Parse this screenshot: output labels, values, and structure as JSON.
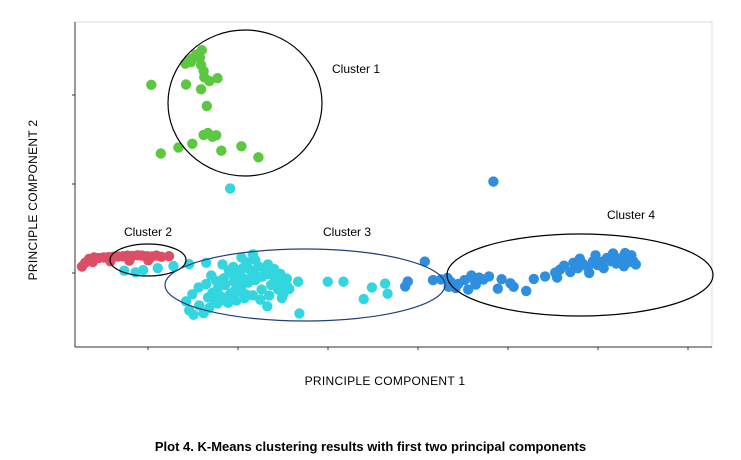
{
  "chart_data": {
    "type": "scatter",
    "title": "",
    "caption": "Plot 4. K-Means clustering results with first two principal components",
    "xlabel": "PRINCIPLE COMPONENT 1",
    "ylabel": "PRINCIPLE COMPONENT 2",
    "xlim": [
      0,
      100
    ],
    "ylim": [
      0,
      100
    ],
    "grid": false,
    "tick_labels_visible": false,
    "colors": {
      "cluster1": "#5cc741",
      "cluster2": "#dc4e66",
      "cluster3": "#33d6de",
      "cluster4": "#2e8fe0",
      "ring_dark": "#000000",
      "ring_blue": "#203f7a"
    },
    "series": [
      {
        "name": "Cluster 1",
        "color": "#5cc741",
        "points": [
          [
            22.5,
            92
          ],
          [
            21.6,
            90.6
          ],
          [
            21.0,
            89.4
          ],
          [
            20.4,
            88.5
          ],
          [
            19.9,
            87.7
          ],
          [
            20.8,
            88.2
          ],
          [
            22.2,
            89.6
          ],
          [
            22.4,
            87.3
          ],
          [
            22.8,
            85.4
          ],
          [
            22.9,
            83.4
          ],
          [
            23.7,
            82.2
          ],
          [
            25.0,
            83.1
          ],
          [
            22.4,
            79.6
          ],
          [
            20.0,
            81.1
          ],
          [
            14.5,
            81.0
          ],
          [
            23.3,
            74.3
          ],
          [
            18.8,
            61.1
          ],
          [
            22.8,
            65.1
          ],
          [
            23.5,
            65.7
          ],
          [
            24.2,
            64.5
          ],
          [
            24.8,
            65.0
          ],
          [
            21.0,
            62.3
          ],
          [
            25.6,
            60.1
          ],
          [
            31.5,
            58.0
          ],
          [
            16.0,
            59.2
          ],
          [
            28.8,
            61.5
          ]
        ]
      },
      {
        "name": "Cluster 2",
        "color": "#dc4e66",
        "points": [
          [
            4.0,
            24.5
          ],
          [
            3.5,
            23.3
          ],
          [
            4.6,
            25.7
          ],
          [
            5.4,
            26.2
          ],
          [
            6.1,
            26.0
          ],
          [
            6.9,
            26.2
          ],
          [
            7.7,
            26.3
          ],
          [
            8.4,
            26.4
          ],
          [
            9.2,
            26.5
          ],
          [
            10.0,
            26.6
          ],
          [
            10.7,
            26.8
          ],
          [
            11.5,
            26.7
          ],
          [
            12.3,
            26.9
          ],
          [
            13.0,
            26.8
          ],
          [
            13.8,
            26.6
          ],
          [
            14.6,
            26.5
          ],
          [
            15.3,
            26.8
          ],
          [
            16.1,
            26.4
          ],
          [
            17.3,
            26.6
          ],
          [
            5.2,
            24.8
          ],
          [
            8.0,
            25.0
          ],
          [
            11.0,
            25.2
          ],
          [
            14.0,
            25.3
          ]
        ]
      },
      {
        "name": "Cluster 3",
        "color": "#33d6de",
        "points": [
          [
            27.0,
            48.1
          ],
          [
            10.2,
            22.0
          ],
          [
            12.0,
            21.5
          ],
          [
            13.2,
            22.2
          ],
          [
            15.5,
            22.8
          ],
          [
            18.0,
            23.5
          ],
          [
            20.5,
            24.1
          ],
          [
            23.2,
            24.5
          ],
          [
            25.8,
            24.0
          ],
          [
            27.5,
            23.2
          ],
          [
            29.0,
            22.8
          ],
          [
            30.8,
            21.5
          ],
          [
            32.5,
            22.2
          ],
          [
            33.5,
            21.4
          ],
          [
            35.6,
            19.0
          ],
          [
            37.8,
            18.5
          ],
          [
            42.5,
            18.5
          ],
          [
            45.0,
            18.5
          ],
          [
            49.5,
            16.7
          ],
          [
            51.6,
            17.9
          ],
          [
            52.0,
            14.7
          ],
          [
            22.1,
            11.0
          ],
          [
            24.6,
            12.1
          ],
          [
            25.8,
            12.7
          ],
          [
            27.3,
            14.9
          ],
          [
            28.5,
            15.6
          ],
          [
            32.9,
            10.7
          ],
          [
            35.2,
            13.3
          ],
          [
            38.0,
            8.4
          ],
          [
            48.2,
            13.0
          ],
          [
            20.5,
            9.4
          ],
          [
            21.2,
            8.0
          ],
          [
            22.8,
            8.5
          ],
          [
            23.7,
            10.2
          ],
          [
            25.0,
            11.6
          ],
          [
            26.0,
            13.4
          ],
          [
            27.0,
            14.7
          ],
          [
            27.8,
            15.8
          ],
          [
            28.8,
            17.0
          ],
          [
            29.9,
            18.2
          ],
          [
            31.0,
            19.0
          ],
          [
            32.1,
            20.1
          ],
          [
            33.0,
            21.0
          ],
          [
            34.1,
            19.6
          ],
          [
            35.0,
            18.2
          ],
          [
            36.1,
            17.0
          ],
          [
            23.5,
            13.5
          ],
          [
            24.2,
            15.0
          ],
          [
            25.0,
            16.2
          ],
          [
            26.2,
            17.5
          ],
          [
            27.6,
            18.6
          ],
          [
            29.0,
            19.7
          ],
          [
            30.5,
            20.5
          ],
          [
            24.8,
            18.8
          ],
          [
            26.0,
            19.6
          ],
          [
            27.5,
            20.7
          ],
          [
            28.5,
            21.9
          ],
          [
            30.0,
            22.5
          ],
          [
            31.5,
            23.4
          ],
          [
            33.0,
            24.0
          ],
          [
            34.0,
            22.5
          ],
          [
            35.0,
            21.0
          ],
          [
            36.0,
            19.5
          ],
          [
            32.0,
            16.0
          ],
          [
            33.5,
            17.5
          ],
          [
            34.6,
            16.0
          ],
          [
            35.5,
            14.8
          ],
          [
            36.4,
            16.2
          ],
          [
            30.6,
            14.2
          ],
          [
            31.8,
            12.8
          ],
          [
            33.2,
            14.1
          ],
          [
            26.7,
            11.8
          ],
          [
            28.0,
            12.5
          ],
          [
            29.3,
            13.3
          ],
          [
            22.0,
            16.7
          ],
          [
            23.2,
            17.8
          ],
          [
            21.0,
            14.5
          ],
          [
            20.0,
            12.3
          ],
          [
            24.0,
            20.5
          ],
          [
            26.8,
            22.1
          ],
          [
            29.7,
            24.6
          ],
          [
            31.0,
            25.4
          ],
          [
            28.8,
            26.2
          ],
          [
            30.6,
            27.2
          ],
          [
            29.5,
            14.5
          ],
          [
            34.8,
            20.0
          ],
          [
            25.3,
            14.2
          ]
        ]
      },
      {
        "name": "Cluster 4",
        "color": "#2e8fe0",
        "points": [
          [
            68.8,
            50.3
          ],
          [
            57.9,
            24.9
          ],
          [
            59.2,
            19.0
          ],
          [
            60.5,
            19.2
          ],
          [
            61.5,
            19.7
          ],
          [
            62.0,
            18.5
          ],
          [
            63.2,
            17.8
          ],
          [
            64.2,
            19.0
          ],
          [
            65.3,
            20.5
          ],
          [
            66.5,
            19.8
          ],
          [
            67.2,
            19.2
          ],
          [
            68.1,
            20.2
          ],
          [
            69.5,
            16.3
          ],
          [
            70.1,
            19.3
          ],
          [
            71.5,
            18.0
          ],
          [
            72.0,
            16.9
          ],
          [
            74.0,
            15.6
          ],
          [
            75.2,
            19.4
          ],
          [
            65.8,
            18.8
          ],
          [
            62.8,
            16.5
          ],
          [
            61.7,
            16.9
          ],
          [
            64.8,
            16.0
          ],
          [
            66.0,
            17.6
          ],
          [
            55.2,
            18.6
          ],
          [
            54.8,
            17.0
          ],
          [
            77.0,
            20.2
          ],
          [
            78.6,
            21.4
          ],
          [
            78.9,
            19.8
          ],
          [
            79.4,
            22.4
          ],
          [
            80.0,
            23.6
          ],
          [
            81.0,
            21.6
          ],
          [
            81.5,
            24.5
          ],
          [
            82.2,
            22.8
          ],
          [
            83.0,
            24.2
          ],
          [
            83.8,
            23.0
          ],
          [
            84.6,
            25.0
          ],
          [
            85.3,
            23.8
          ],
          [
            86.0,
            24.8
          ],
          [
            86.8,
            26.0
          ],
          [
            87.5,
            25.0
          ],
          [
            88.3,
            24.3
          ],
          [
            88.9,
            25.9
          ],
          [
            89.5,
            23.4
          ],
          [
            90.2,
            24.7
          ],
          [
            90.7,
            26.9
          ],
          [
            91.0,
            25.0
          ],
          [
            91.4,
            24.0
          ],
          [
            82.5,
            25.8
          ],
          [
            85.0,
            26.9
          ],
          [
            87.8,
            27.5
          ],
          [
            86.3,
            22.8
          ],
          [
            84.0,
            21.3
          ],
          [
            89.7,
            27.6
          ]
        ]
      }
    ],
    "annotations": [
      {
        "label": "Cluster 1",
        "ring_color": "#000000"
      },
      {
        "label": "Cluster 2",
        "ring_color": "#000000"
      },
      {
        "label": "Cluster 3",
        "ring_color": "#203f7a"
      },
      {
        "label": "Cluster 4",
        "ring_color": "#000000"
      }
    ]
  }
}
